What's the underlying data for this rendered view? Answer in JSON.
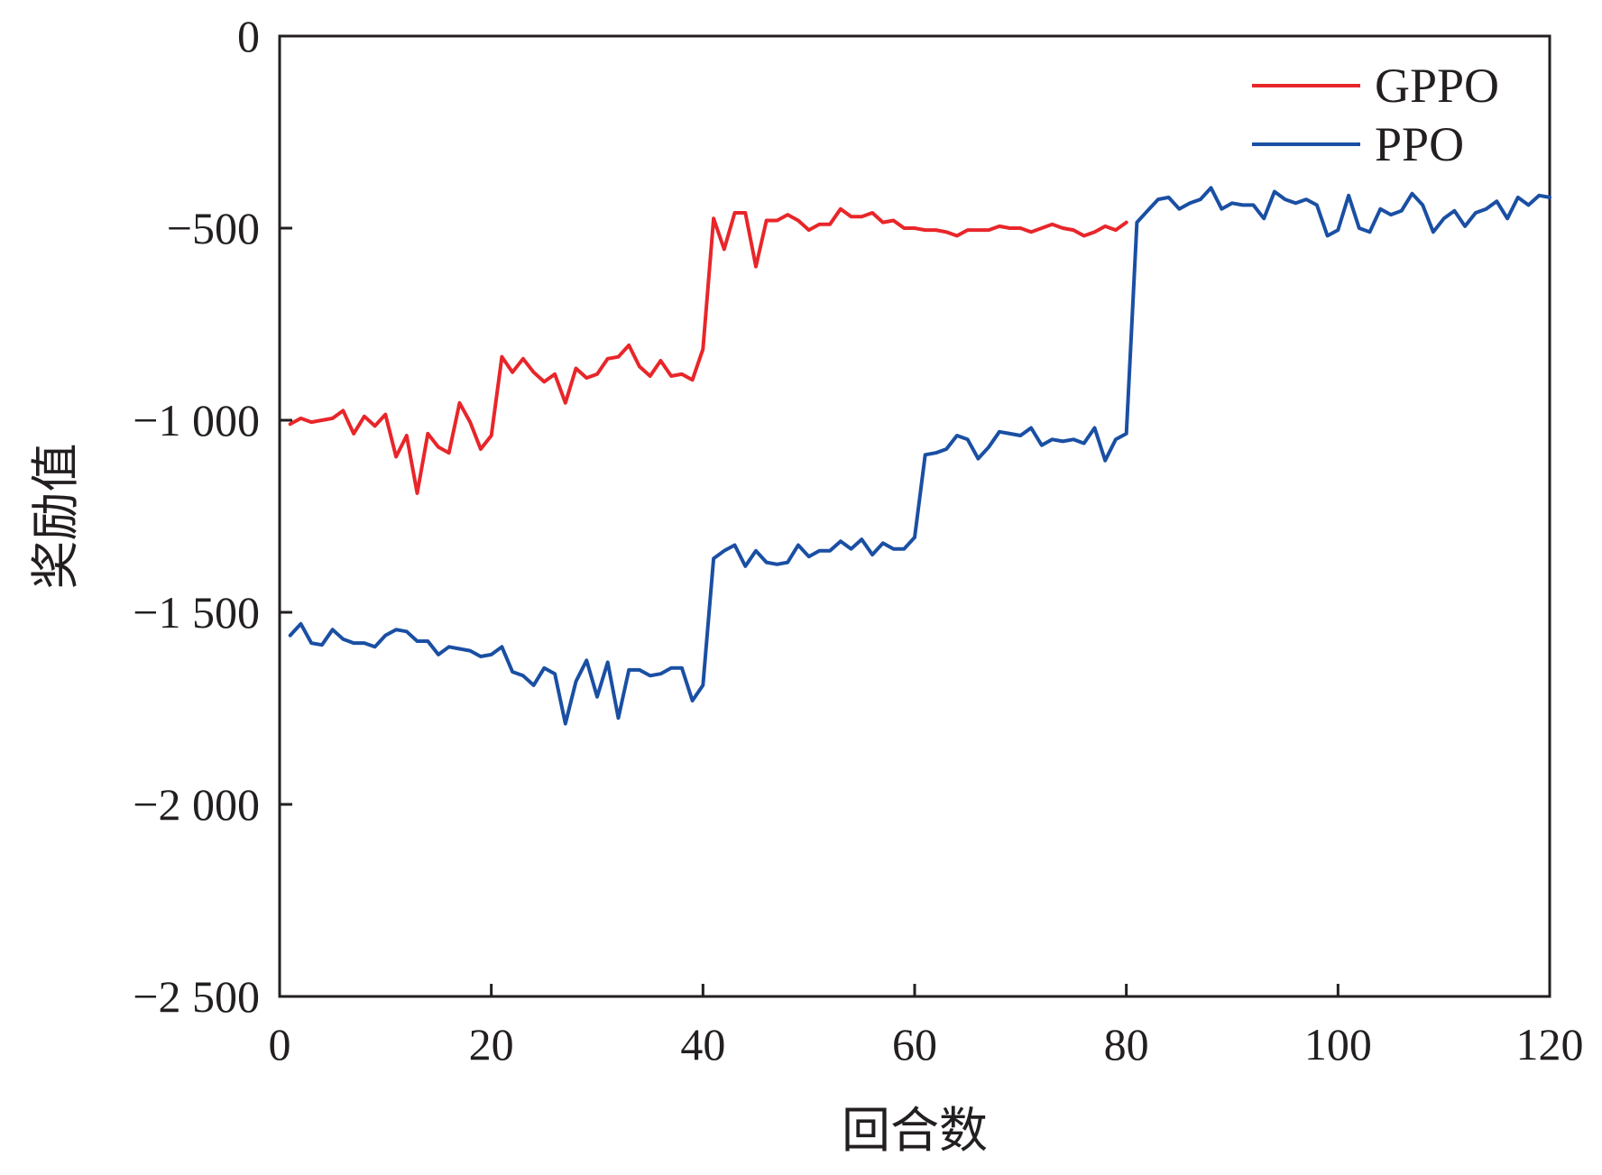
{
  "chart_data": {
    "type": "line",
    "title": "",
    "xlabel": "回合数",
    "ylabel": "奖励值",
    "xlim": [
      0,
      120
    ],
    "ylim": [
      -2500,
      0
    ],
    "xticks": [
      0,
      20,
      40,
      60,
      80,
      100,
      120
    ],
    "yticks": [
      0,
      -500,
      -1000,
      -1500,
      -2000,
      -2500
    ],
    "xtick_labels": [
      "0",
      "20",
      "40",
      "60",
      "80",
      "100",
      "120"
    ],
    "ytick_labels": [
      "0",
      "−500",
      "−1 000",
      "−1 500",
      "−2 000",
      "−2 500"
    ],
    "grid": false,
    "legend_position": "top-right",
    "series": [
      {
        "name": "GPPO",
        "color": "#e8262a",
        "x": [
          1,
          2,
          3,
          4,
          5,
          6,
          7,
          8,
          9,
          10,
          11,
          12,
          13,
          14,
          15,
          16,
          17,
          18,
          19,
          20,
          21,
          22,
          23,
          24,
          25,
          26,
          27,
          28,
          29,
          30,
          31,
          32,
          33,
          34,
          35,
          36,
          37,
          38,
          39,
          40,
          41,
          42,
          43,
          44,
          45,
          46,
          47,
          48,
          49,
          50,
          51,
          52,
          53,
          54,
          55,
          56,
          57,
          58,
          59,
          60,
          61,
          62,
          63,
          64,
          65,
          66,
          67,
          68,
          69,
          70,
          71,
          72,
          73,
          74,
          75,
          76,
          77,
          78,
          79,
          80
        ],
        "values": [
          -1010,
          -995,
          -1005,
          -1000,
          -995,
          -975,
          -1035,
          -990,
          -1015,
          -985,
          -1095,
          -1040,
          -1190,
          -1035,
          -1070,
          -1085,
          -955,
          -1005,
          -1075,
          -1040,
          -835,
          -875,
          -840,
          -875,
          -900,
          -880,
          -955,
          -865,
          -890,
          -880,
          -840,
          -835,
          -805,
          -860,
          -885,
          -845,
          -885,
          -880,
          -895,
          -815,
          -475,
          -555,
          -460,
          -460,
          -600,
          -480,
          -480,
          -465,
          -480,
          -505,
          -490,
          -490,
          -450,
          -470,
          -470,
          -460,
          -485,
          -480,
          -500,
          -500,
          -505,
          -505,
          -510,
          -520,
          -505,
          -505,
          -505,
          -495,
          -500,
          -500,
          -510,
          -500,
          -490,
          -500,
          -505,
          -520,
          -510,
          -495,
          -505,
          -485
        ]
      },
      {
        "name": "PPO",
        "color": "#1a4fa3",
        "x": [
          1,
          2,
          3,
          4,
          5,
          6,
          7,
          8,
          9,
          10,
          11,
          12,
          13,
          14,
          15,
          16,
          17,
          18,
          19,
          20,
          21,
          22,
          23,
          24,
          25,
          26,
          27,
          28,
          29,
          30,
          31,
          32,
          33,
          34,
          35,
          36,
          37,
          38,
          39,
          40,
          41,
          42,
          43,
          44,
          45,
          46,
          47,
          48,
          49,
          50,
          51,
          52,
          53,
          54,
          55,
          56,
          57,
          58,
          59,
          60,
          61,
          62,
          63,
          64,
          65,
          66,
          67,
          68,
          69,
          70,
          71,
          72,
          73,
          74,
          75,
          76,
          77,
          78,
          79,
          80,
          81,
          82,
          83,
          84,
          85,
          86,
          87,
          88,
          89,
          90,
          91,
          92,
          93,
          94,
          95,
          96,
          97,
          98,
          99,
          100,
          101,
          102,
          103,
          104,
          105,
          106,
          107,
          108,
          109,
          110,
          111,
          112,
          113,
          114,
          115,
          116,
          117,
          118,
          119,
          120
        ],
        "values": [
          -1560,
          -1530,
          -1580,
          -1585,
          -1545,
          -1570,
          -1580,
          -1580,
          -1590,
          -1560,
          -1545,
          -1550,
          -1575,
          -1575,
          -1610,
          -1590,
          -1595,
          -1600,
          -1615,
          -1610,
          -1590,
          -1655,
          -1665,
          -1690,
          -1645,
          -1660,
          -1790,
          -1680,
          -1625,
          -1720,
          -1630,
          -1775,
          -1650,
          -1650,
          -1665,
          -1660,
          -1645,
          -1645,
          -1730,
          -1690,
          -1360,
          -1340,
          -1325,
          -1380,
          -1340,
          -1370,
          -1375,
          -1370,
          -1325,
          -1355,
          -1340,
          -1340,
          -1315,
          -1335,
          -1310,
          -1350,
          -1320,
          -1335,
          -1335,
          -1305,
          -1090,
          -1085,
          -1075,
          -1040,
          -1050,
          -1100,
          -1070,
          -1030,
          -1035,
          -1040,
          -1020,
          -1065,
          -1050,
          -1055,
          -1050,
          -1060,
          -1020,
          -1105,
          -1050,
          -1035,
          -485,
          -455,
          -425,
          -420,
          -450,
          -435,
          -425,
          -395,
          -450,
          -435,
          -440,
          -440,
          -475,
          -405,
          -425,
          -435,
          -425,
          -440,
          -520,
          -505,
          -415,
          -500,
          -510,
          -450,
          -465,
          -455,
          -410,
          -440,
          -510,
          -475,
          -455,
          -495,
          -460,
          -450,
          -430,
          -475,
          -420,
          -440,
          -415,
          -420
        ]
      }
    ]
  }
}
